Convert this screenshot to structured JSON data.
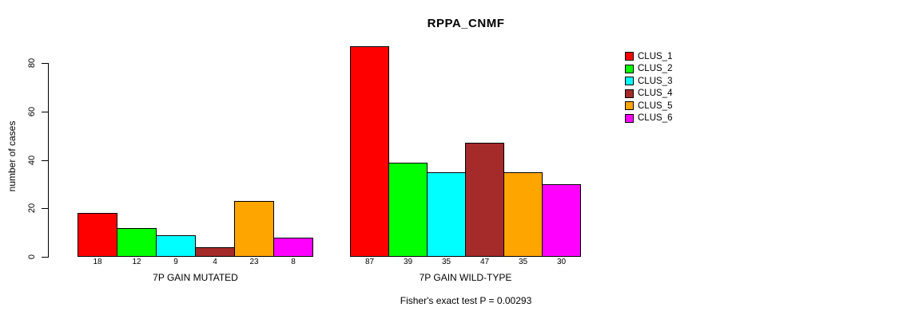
{
  "chart_data": {
    "type": "bar",
    "title": "RPPA_CNMF",
    "ylabel": "number of cases",
    "xlabel": "",
    "ylim": [
      0,
      87
    ],
    "yticks": [
      0,
      20,
      40,
      60,
      80
    ],
    "grid": false,
    "legend_position": "right",
    "legend": [
      {
        "name": "CLUS_1",
        "color": "#FF0000"
      },
      {
        "name": "CLUS_2",
        "color": "#00FF00"
      },
      {
        "name": "CLUS_3",
        "color": "#00FFFF"
      },
      {
        "name": "CLUS_4",
        "color": "#A52A2A"
      },
      {
        "name": "CLUS_5",
        "color": "#FFA500"
      },
      {
        "name": "CLUS_6",
        "color": "#FF00FF"
      }
    ],
    "groups": [
      {
        "label": "7P GAIN MUTATED",
        "values": [
          18,
          12,
          9,
          4,
          23,
          8
        ]
      },
      {
        "label": "7P GAIN WILD-TYPE",
        "values": [
          87,
          39,
          35,
          47,
          35,
          30
        ]
      }
    ],
    "annotation": "Fisher's exact test P = 0.00293",
    "colors": {
      "background": "#FFFFFF",
      "bar_border": "#000000",
      "text": "#000000"
    }
  }
}
